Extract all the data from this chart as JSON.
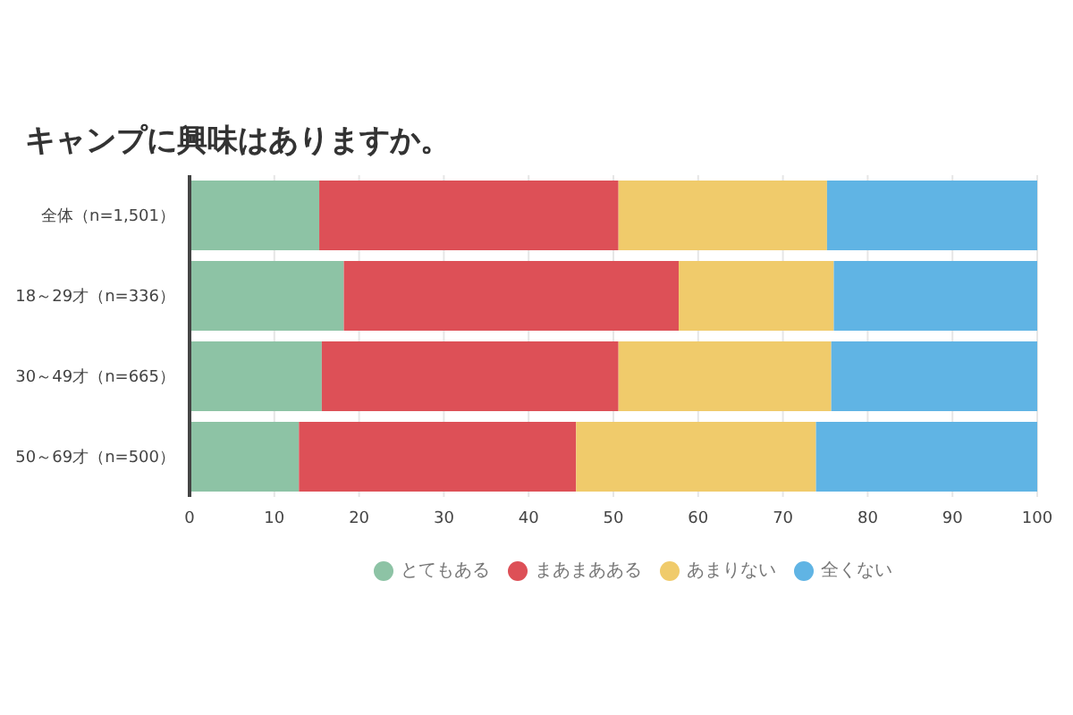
{
  "chart_data": {
    "type": "bar",
    "title": "キャンプに興味はありますか。",
    "orientation": "horizontal",
    "stacked": true,
    "categories": [
      "全体（n=1,501）",
      "18～29才（n=336）",
      "30～49才（n=665）",
      "50～69才（n=500）"
    ],
    "series": [
      {
        "name": "とてもある",
        "color": "#8dc3a5",
        "values": [
          15.3,
          18.2,
          15.6,
          12.9
        ]
      },
      {
        "name": "まあまあある",
        "color": "#dd5057",
        "values": [
          35.3,
          39.5,
          35.0,
          32.7
        ]
      },
      {
        "name": "あまりない",
        "color": "#f0cb6b",
        "values": [
          24.6,
          18.3,
          25.1,
          28.3
        ]
      },
      {
        "name": "全くない",
        "color": "#60b4e4",
        "values": [
          24.8,
          24.0,
          24.3,
          26.1
        ]
      }
    ],
    "xlim": [
      0,
      100
    ],
    "xticks": [
      0,
      10,
      20,
      30,
      40,
      50,
      60,
      70,
      80,
      90,
      100
    ],
    "grid": "x",
    "legend": "bottom"
  }
}
